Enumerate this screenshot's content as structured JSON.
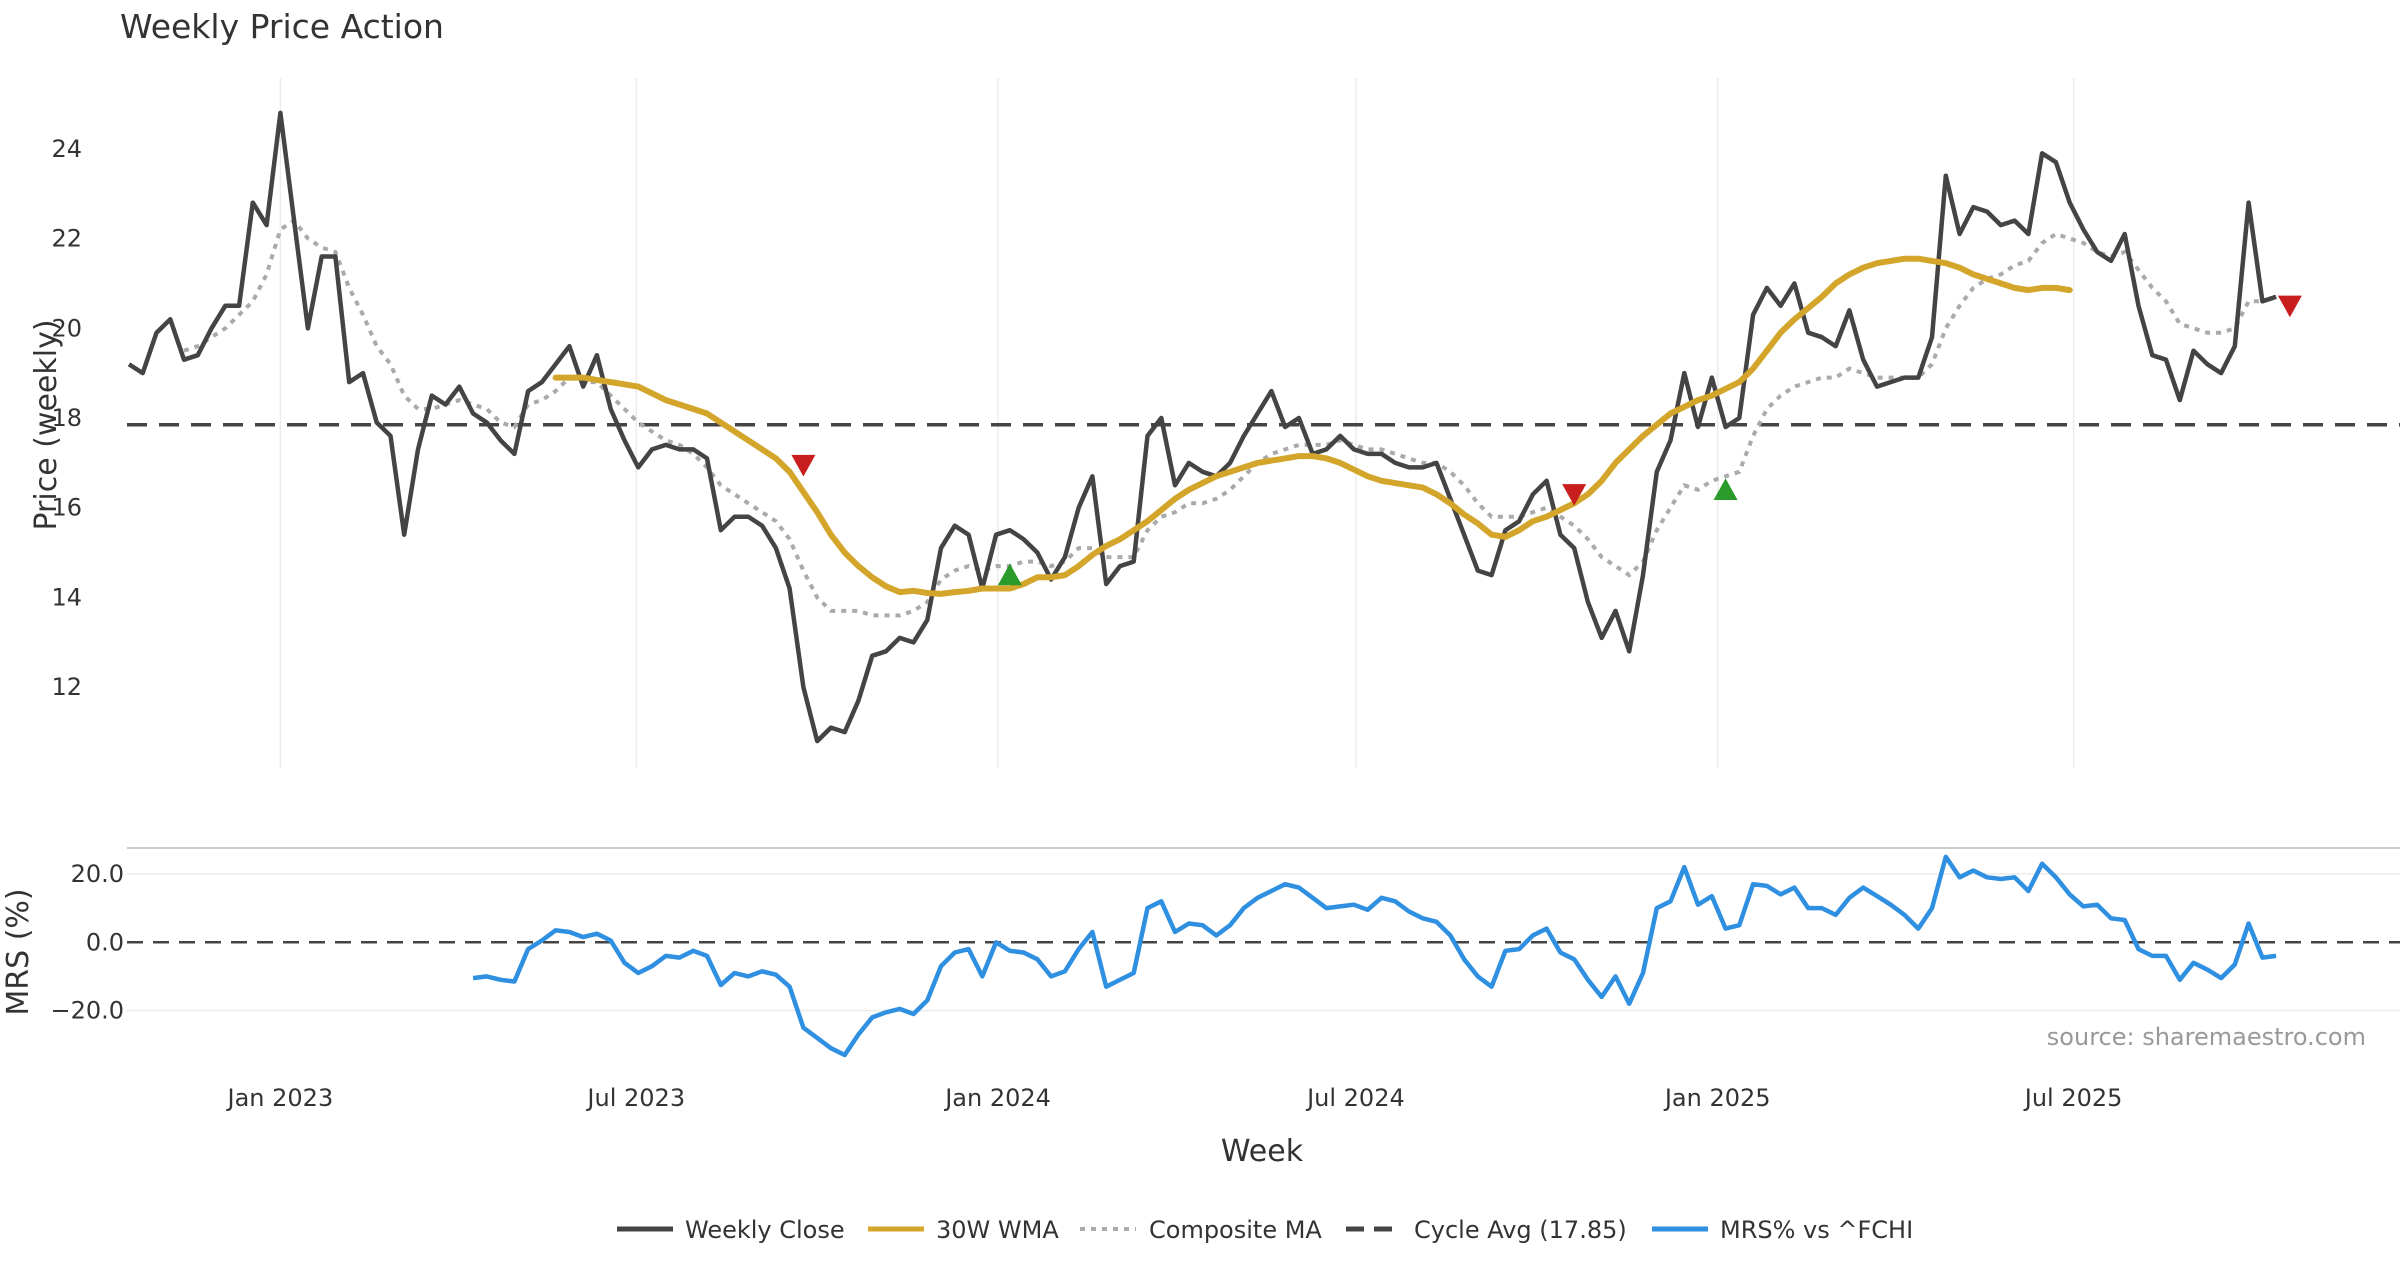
{
  "chart_data": {
    "type": "line",
    "title": "Weekly Price Action",
    "xlabel": "Week",
    "x_ticks": [
      "Jan 2023",
      "Jul 2023",
      "Jan 2024",
      "Jul 2024",
      "Jan 2025",
      "Jul 2025"
    ],
    "x_tick_dates": [
      "2023-01-01",
      "2023-07-01",
      "2024-01-01",
      "2024-07-01",
      "2025-01-01",
      "2025-07-01"
    ],
    "x_range": [
      "2022-10-15",
      "2025-12-14"
    ],
    "grid": true,
    "legend_position": "bottom",
    "source": "source: sharemaestro.com",
    "colors": {
      "weekly_close": "#444444",
      "wma": "#D4A52B",
      "composite": "#AAAAAA",
      "cycle": "#444444",
      "mrs": "#2F8FE0",
      "buy": "#2A9A2A",
      "sell": "#C81E1E"
    },
    "price_panel": {
      "ylabel": "Price (weekly)",
      "ylim": [
        10.2,
        25.8
      ],
      "yticks": [
        "12",
        "14",
        "16",
        "18",
        "20",
        "22",
        "24"
      ],
      "ytick_values": [
        12,
        14,
        16,
        18,
        20,
        22,
        24
      ],
      "cycle_avg": 17.85,
      "series": [
        {
          "name": "Weekly Close",
          "start": "2022-10-16",
          "step_days": 7,
          "values": [
            19.2,
            19.0,
            19.9,
            20.2,
            19.3,
            19.4,
            20.0,
            20.5,
            20.5,
            22.8,
            22.3,
            24.8,
            22.4,
            20.0,
            21.6,
            21.6,
            18.8,
            19.0,
            17.9,
            17.6,
            15.4,
            17.3,
            18.5,
            18.3,
            18.7,
            18.1,
            17.9,
            17.5,
            17.2,
            18.6,
            18.8,
            19.2,
            19.6,
            18.7,
            19.4,
            18.2,
            17.5,
            16.9,
            17.3,
            17.4,
            17.3,
            17.3,
            17.1,
            15.5,
            15.8,
            15.8,
            15.6,
            15.1,
            14.2,
            12.0,
            10.8,
            11.1,
            11.0,
            11.7,
            12.7,
            12.8,
            13.1,
            13.0,
            13.5,
            15.1,
            15.6,
            15.4,
            14.2,
            15.4,
            15.5,
            15.3,
            15.0,
            14.4,
            14.9,
            16.0,
            16.7,
            14.3,
            14.7,
            14.8,
            17.6,
            18.0,
            16.5,
            17.0,
            16.8,
            16.7,
            17.0,
            17.6,
            18.1,
            18.6,
            17.8,
            18.0,
            17.2,
            17.3,
            17.6,
            17.3,
            17.2,
            17.2,
            17.0,
            16.9,
            16.9,
            17.0,
            16.2,
            15.4,
            14.6,
            14.5,
            15.5,
            15.7,
            16.3,
            16.6,
            15.4,
            15.1,
            13.9,
            13.1,
            13.7,
            12.8,
            14.5,
            16.8,
            17.5,
            19.0,
            17.8,
            18.9,
            17.8,
            18.0,
            20.3,
            20.9,
            20.5,
            21.0,
            19.9,
            19.8,
            19.6,
            20.4,
            19.3,
            18.7,
            18.8,
            18.9,
            18.9,
            19.8,
            23.4,
            22.1,
            22.7,
            22.6,
            22.3,
            22.4,
            22.1,
            23.9,
            23.7,
            22.8,
            22.2,
            21.7,
            21.5,
            22.1,
            20.5,
            19.4,
            19.3,
            18.4,
            19.5,
            19.2,
            19.0,
            19.6,
            22.8,
            20.6,
            20.7
          ]
        },
        {
          "name": "30W WMA",
          "start": "2023-05-21",
          "step_days": 7,
          "values": [
            18.9,
            18.9,
            18.9,
            18.85,
            18.8,
            18.75,
            18.7,
            18.55,
            18.4,
            18.3,
            18.2,
            18.1,
            17.9,
            17.7,
            17.5,
            17.3,
            17.1,
            16.8,
            16.35,
            15.9,
            15.4,
            15.0,
            14.7,
            14.45,
            14.25,
            14.12,
            14.15,
            14.1,
            14.08,
            14.12,
            14.15,
            14.2,
            14.2,
            14.2,
            14.3,
            14.45,
            14.45,
            14.5,
            14.7,
            14.95,
            15.15,
            15.3,
            15.5,
            15.7,
            15.95,
            16.2,
            16.4,
            16.55,
            16.7,
            16.8,
            16.9,
            17.0,
            17.05,
            17.1,
            17.15,
            17.15,
            17.1,
            17.0,
            16.85,
            16.7,
            16.6,
            16.55,
            16.5,
            16.45,
            16.3,
            16.1,
            15.85,
            15.65,
            15.4,
            15.35,
            15.5,
            15.7,
            15.8,
            15.95,
            16.1,
            16.3,
            16.6,
            17.0,
            17.3,
            17.6,
            17.85,
            18.1,
            18.25,
            18.4,
            18.5,
            18.65,
            18.8,
            19.1,
            19.5,
            19.9,
            20.2,
            20.45,
            20.7,
            21.0,
            21.2,
            21.35,
            21.45,
            21.5,
            21.55,
            21.55,
            21.5,
            21.45,
            21.35,
            21.2,
            21.1,
            21.0,
            20.9,
            20.85,
            20.9,
            20.9,
            20.85
          ]
        },
        {
          "name": "Composite MA",
          "start": "2022-10-16",
          "step_days": 7,
          "values": [
            null,
            null,
            null,
            null,
            19.5,
            19.6,
            19.8,
            20.0,
            20.3,
            20.6,
            21.2,
            22.2,
            22.4,
            22.0,
            21.8,
            21.7,
            20.9,
            20.3,
            19.6,
            19.2,
            18.5,
            18.2,
            18.2,
            18.3,
            18.4,
            18.3,
            18.2,
            17.9,
            17.8,
            18.3,
            18.4,
            18.6,
            18.9,
            18.8,
            18.8,
            18.5,
            18.2,
            17.9,
            17.7,
            17.5,
            17.4,
            17.2,
            16.9,
            16.5,
            16.3,
            16.1,
            15.9,
            15.7,
            15.3,
            14.6,
            14.0,
            13.7,
            13.7,
            13.7,
            13.6,
            13.6,
            13.6,
            13.7,
            13.9,
            14.4,
            14.6,
            14.7,
            14.6,
            14.7,
            14.7,
            14.8,
            14.8,
            14.7,
            14.8,
            15.1,
            15.1,
            14.9,
            14.9,
            14.9,
            15.5,
            15.8,
            15.9,
            16.1,
            16.1,
            16.2,
            16.4,
            16.7,
            17.0,
            17.2,
            17.3,
            17.4,
            17.4,
            17.4,
            17.5,
            17.4,
            17.3,
            17.3,
            17.2,
            17.1,
            17.0,
            17.0,
            16.8,
            16.5,
            16.1,
            15.8,
            15.8,
            15.8,
            15.9,
            16.0,
            15.8,
            15.6,
            15.3,
            14.9,
            14.7,
            14.5,
            14.8,
            15.5,
            16.0,
            16.5,
            16.4,
            16.6,
            16.7,
            16.8,
            17.6,
            18.2,
            18.5,
            18.7,
            18.8,
            18.9,
            18.9,
            19.1,
            19.0,
            18.9,
            18.9,
            18.9,
            18.9,
            19.2,
            20.0,
            20.5,
            20.9,
            21.1,
            21.2,
            21.4,
            21.5,
            21.9,
            22.1,
            22.0,
            21.9,
            21.7,
            21.6,
            21.7,
            21.3,
            20.9,
            20.6,
            20.1,
            20.0,
            19.9,
            19.9,
            20.0,
            20.6,
            20.6,
            20.7
          ]
        }
      ],
      "signals": [
        {
          "type": "sell",
          "date": "2023-09-24",
          "value": 16.95
        },
        {
          "type": "buy",
          "date": "2024-01-07",
          "value": 14.5
        },
        {
          "type": "sell",
          "date": "2024-10-20",
          "value": 16.3
        },
        {
          "type": "buy",
          "date": "2025-01-05",
          "value": 16.4
        },
        {
          "type": "sell",
          "date": "2025-10-19",
          "value": 20.5
        }
      ]
    },
    "mrs_panel": {
      "ylabel": "MRS (%)",
      "ylim": [
        -33,
        27
      ],
      "yticks": [
        "20.0",
        "0.0",
        "−20.0"
      ],
      "ytick_values": [
        20,
        0,
        -20
      ],
      "zero_line": 0,
      "series": [
        {
          "name": "MRS% vs ^FCHI",
          "start": "2023-04-09",
          "step_days": 7,
          "values": [
            -10.5,
            -10,
            -11,
            -11.5,
            -2,
            0.5,
            3.5,
            3,
            1.5,
            2.5,
            0.5,
            -6,
            -9,
            -7,
            -4,
            -4.5,
            -2.5,
            -4,
            -12.5,
            -9,
            -10,
            -8.5,
            -9.5,
            -13,
            -25,
            -28,
            -31,
            -33,
            -27,
            -22,
            -20.5,
            -19.5,
            -21,
            -17,
            -7,
            -3,
            -2,
            -10,
            0,
            -2.5,
            -3,
            -5,
            -10,
            -8.5,
            -2,
            3,
            -13,
            -11,
            -9,
            10,
            12,
            3,
            5.5,
            5,
            2,
            5,
            10,
            13,
            15,
            17,
            16,
            13,
            10,
            10.5,
            11,
            9.5,
            13,
            12,
            9,
            7,
            6,
            2,
            -5,
            -10,
            -13,
            -2.5,
            -2,
            2,
            4,
            -3,
            -5,
            -11,
            -16,
            -10,
            -18,
            -9,
            10,
            12,
            22,
            11,
            13.5,
            4,
            5,
            17,
            16.5,
            14,
            16,
            10,
            10,
            8,
            13,
            16,
            13.5,
            11,
            8,
            4,
            10,
            25,
            19,
            21,
            19,
            18.5,
            19,
            15,
            23,
            19,
            14,
            10.5,
            11,
            7,
            6.5,
            -2,
            -4,
            -4,
            -11,
            -6,
            -8,
            -10.5,
            -6.5,
            5.5,
            -4.5,
            -4
          ]
        }
      ]
    },
    "legend": [
      {
        "label": "Weekly Close",
        "style": "solid",
        "color_key": "weekly_close"
      },
      {
        "label": "30W WMA",
        "style": "solid",
        "color_key": "wma"
      },
      {
        "label": "Composite MA",
        "style": "dotted",
        "color_key": "composite"
      },
      {
        "label": "Cycle Avg (17.85)",
        "style": "dashed",
        "color_key": "cycle"
      },
      {
        "label": "MRS% vs ^FCHI",
        "style": "solid",
        "color_key": "mrs"
      }
    ]
  }
}
